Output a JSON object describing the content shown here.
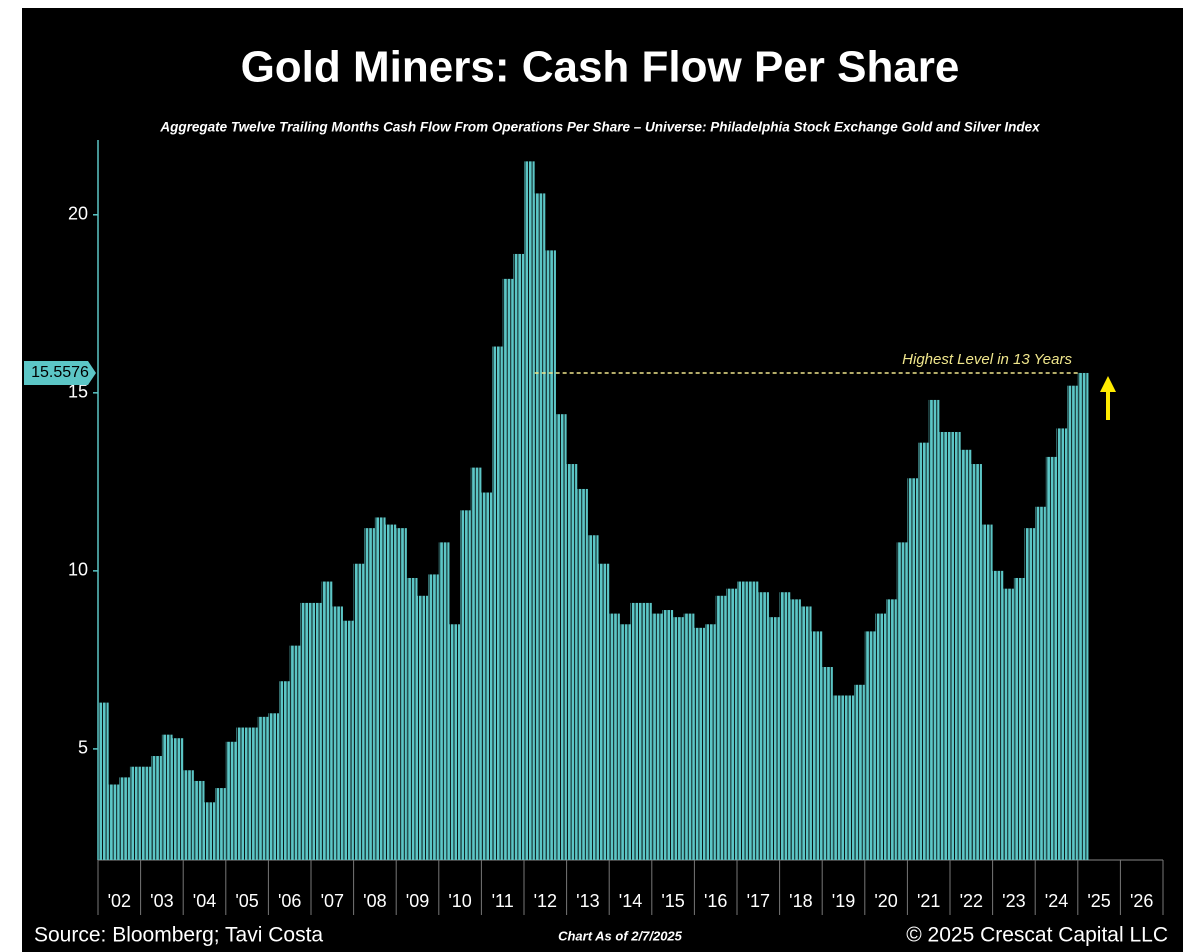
{
  "chart_data": {
    "type": "bar",
    "title": "Gold Miners: Cash Flow Per Share",
    "subtitle": "Aggregate Twelve Trailing Months Cash Flow From Operations Per Share – Universe: Philadelphia Stock Exchange Gold and Silver Index",
    "source": "Source: Bloomberg; Tavi Costa",
    "chart_date": "Chart As of 2/7/2025",
    "copyright": "© 2025 Crescat Capital LLC",
    "annotation": "Highest Level in 13 Years",
    "current_value": 15.5576,
    "color": "#5cc6c6",
    "x": [
      2002,
      2002.25,
      2002.5,
      2002.75,
      2003,
      2003.25,
      2003.5,
      2003.75,
      2004,
      2004.25,
      2004.5,
      2004.75,
      2005,
      2005.25,
      2005.5,
      2005.75,
      2006,
      2006.25,
      2006.5,
      2006.75,
      2007,
      2007.25,
      2007.5,
      2007.75,
      2008,
      2008.25,
      2008.5,
      2008.75,
      2009,
      2009.25,
      2009.5,
      2009.75,
      2010,
      2010.25,
      2010.5,
      2010.75,
      2011,
      2011.25,
      2011.5,
      2011.75,
      2012,
      2012.25,
      2012.5,
      2012.75,
      2013,
      2013.25,
      2013.5,
      2013.75,
      2014,
      2014.25,
      2014.5,
      2014.75,
      2015,
      2015.25,
      2015.5,
      2015.75,
      2016,
      2016.25,
      2016.5,
      2016.75,
      2017,
      2017.25,
      2017.5,
      2017.75,
      2018,
      2018.25,
      2018.5,
      2018.75,
      2019,
      2019.25,
      2019.5,
      2019.75,
      2020,
      2020.25,
      2020.5,
      2020.75,
      2021,
      2021.25,
      2021.5,
      2021.75,
      2022,
      2022.25,
      2022.5,
      2022.75,
      2023,
      2023.25,
      2023.5,
      2023.75,
      2024,
      2024.25,
      2024.5,
      2024.75,
      2025
    ],
    "values": [
      6.3,
      4.0,
      4.2,
      4.5,
      4.5,
      4.8,
      5.4,
      5.3,
      4.4,
      4.1,
      3.5,
      3.9,
      5.2,
      5.6,
      5.6,
      5.9,
      6.0,
      6.9,
      7.9,
      9.1,
      9.1,
      9.7,
      9.0,
      8.6,
      10.2,
      11.2,
      11.5,
      11.3,
      11.2,
      9.8,
      9.3,
      9.9,
      10.8,
      8.5,
      11.7,
      12.9,
      12.2,
      16.3,
      18.2,
      18.9,
      21.5,
      20.6,
      19.0,
      14.4,
      13.0,
      12.3,
      11.0,
      10.2,
      8.8,
      8.5,
      9.1,
      9.1,
      8.8,
      8.9,
      8.7,
      8.8,
      8.4,
      8.5,
      9.3,
      9.5,
      9.7,
      9.7,
      9.4,
      8.7,
      9.4,
      9.2,
      9.0,
      8.3,
      7.3,
      6.5,
      6.5,
      6.8,
      8.3,
      8.8,
      9.2,
      10.8,
      12.6,
      13.6,
      14.8,
      13.9,
      13.9,
      13.4,
      13.0,
      11.3,
      10.0,
      9.5,
      9.8,
      11.2,
      11.8,
      13.2,
      14.0,
      15.2,
      15.5576
    ],
    "annotation_line_start": 2012.25,
    "xlim": [
      2002,
      2027
    ],
    "xticks": [
      {
        "value": 2002,
        "label": "'02"
      },
      {
        "value": 2003,
        "label": "'03"
      },
      {
        "value": 2004,
        "label": "'04"
      },
      {
        "value": 2005,
        "label": "'05"
      },
      {
        "value": 2006,
        "label": "'06"
      },
      {
        "value": 2007,
        "label": "'07"
      },
      {
        "value": 2008,
        "label": "'08"
      },
      {
        "value": 2009,
        "label": "'09"
      },
      {
        "value": 2010,
        "label": "'10"
      },
      {
        "value": 2011,
        "label": "'11"
      },
      {
        "value": 2012,
        "label": "'12"
      },
      {
        "value": 2013,
        "label": "'13"
      },
      {
        "value": 2014,
        "label": "'14"
      },
      {
        "value": 2015,
        "label": "'15"
      },
      {
        "value": 2016,
        "label": "'16"
      },
      {
        "value": 2017,
        "label": "'17"
      },
      {
        "value": 2018,
        "label": "'18"
      },
      {
        "value": 2019,
        "label": "'19"
      },
      {
        "value": 2020,
        "label": "'20"
      },
      {
        "value": 2021,
        "label": "'21"
      },
      {
        "value": 2022,
        "label": "'22"
      },
      {
        "value": 2023,
        "label": "'23"
      },
      {
        "value": 2024,
        "label": "'24"
      },
      {
        "value": 2025,
        "label": "'25"
      },
      {
        "value": 2026,
        "label": "'26"
      }
    ],
    "ylim": [
      1.88,
      22.1
    ],
    "yticks": [
      5,
      10,
      15,
      20
    ]
  }
}
